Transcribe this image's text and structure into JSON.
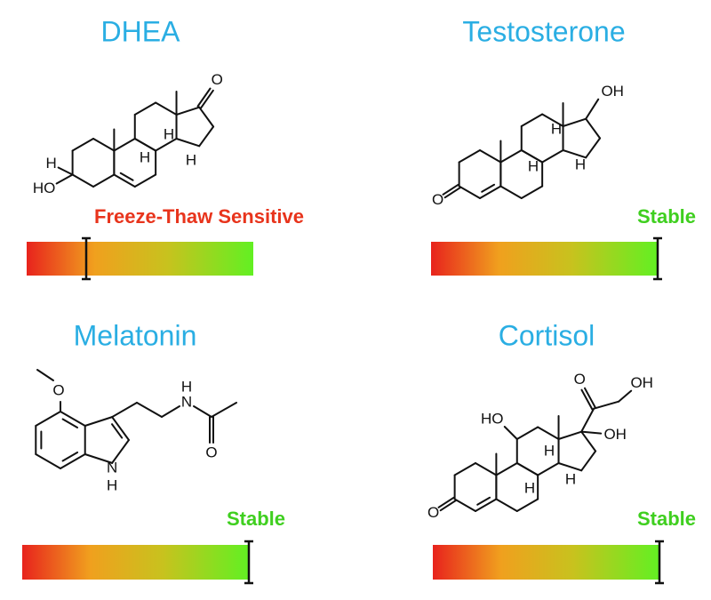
{
  "panels": [
    {
      "title": "DHEA",
      "status": "Freeze-Thaw Sensitive",
      "labels": [
        "O",
        "H",
        "H",
        "H",
        "H",
        "HO"
      ]
    },
    {
      "title": "Testosterone",
      "status": "Stable",
      "labels": [
        "OH",
        "H",
        "H",
        "H",
        "O"
      ]
    },
    {
      "title": "Melatonin",
      "status": "Stable",
      "labels": [
        "O",
        "H",
        "N",
        "N",
        "H",
        "O"
      ]
    },
    {
      "title": "Cortisol",
      "status": "Stable",
      "labels": [
        "O",
        "OH",
        "HO",
        "OH",
        "H",
        "H",
        "H",
        "O"
      ]
    }
  ]
}
